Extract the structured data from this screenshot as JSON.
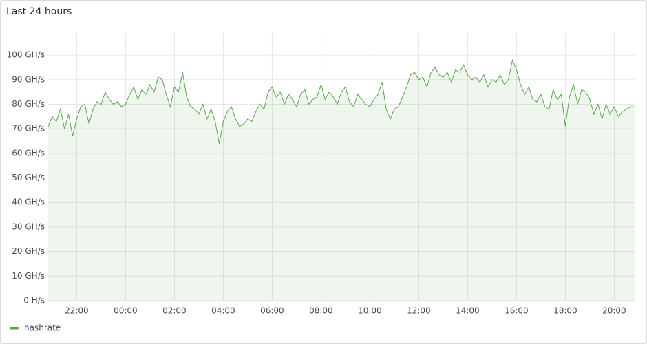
{
  "chart_data": {
    "type": "line",
    "title": "Last 24 hours",
    "x": [
      "20:50",
      "21:00",
      "21:10",
      "21:20",
      "21:30",
      "21:40",
      "21:50",
      "22:00",
      "22:10",
      "22:20",
      "22:30",
      "22:40",
      "22:50",
      "23:00",
      "23:10",
      "23:20",
      "23:30",
      "23:40",
      "23:50",
      "00:00",
      "00:10",
      "00:20",
      "00:30",
      "00:40",
      "00:50",
      "01:00",
      "01:10",
      "01:20",
      "01:30",
      "01:40",
      "01:50",
      "02:00",
      "02:10",
      "02:20",
      "02:30",
      "02:40",
      "02:50",
      "03:00",
      "03:10",
      "03:20",
      "03:30",
      "03:40",
      "03:50",
      "04:00",
      "04:10",
      "04:20",
      "04:30",
      "04:40",
      "04:50",
      "05:00",
      "05:10",
      "05:20",
      "05:30",
      "05:40",
      "05:50",
      "06:00",
      "06:10",
      "06:20",
      "06:30",
      "06:40",
      "06:50",
      "07:00",
      "07:10",
      "07:20",
      "07:30",
      "07:40",
      "07:50",
      "08:00",
      "08:10",
      "08:20",
      "08:30",
      "08:40",
      "08:50",
      "09:00",
      "09:10",
      "09:20",
      "09:30",
      "09:40",
      "09:50",
      "10:00",
      "10:10",
      "10:20",
      "10:30",
      "10:40",
      "10:50",
      "11:00",
      "11:10",
      "11:20",
      "11:30",
      "11:40",
      "11:50",
      "12:00",
      "12:10",
      "12:20",
      "12:30",
      "12:40",
      "12:50",
      "13:00",
      "13:10",
      "13:20",
      "13:30",
      "13:40",
      "13:50",
      "14:00",
      "14:10",
      "14:20",
      "14:30",
      "14:40",
      "14:50",
      "15:00",
      "15:10",
      "15:20",
      "15:30",
      "15:40",
      "15:50",
      "16:00",
      "16:10",
      "16:20",
      "16:30",
      "16:40",
      "16:50",
      "17:00",
      "17:10",
      "17:20",
      "17:30",
      "17:40",
      "17:50",
      "18:00",
      "18:10",
      "18:20",
      "18:30",
      "18:40",
      "18:50",
      "19:00",
      "19:10",
      "19:20",
      "19:30",
      "19:40",
      "19:50",
      "20:00",
      "20:10",
      "20:20",
      "20:30",
      "20:40",
      "20:50"
    ],
    "series": [
      {
        "name": "hashrate",
        "color": "#56a64b",
        "values": [
          71,
          75,
          73,
          78,
          70,
          76,
          67,
          74,
          79,
          80,
          72,
          78,
          81,
          80,
          85,
          82,
          80,
          81,
          79,
          80,
          84,
          87,
          82,
          86,
          84,
          88,
          85,
          91,
          90,
          84,
          79,
          87,
          85,
          93,
          83,
          79,
          78,
          76,
          80,
          74,
          78,
          73,
          64,
          73,
          77,
          79,
          74,
          71,
          72,
          74,
          73,
          77,
          80,
          78,
          85,
          87,
          83,
          85,
          80,
          84,
          82,
          79,
          84,
          86,
          80,
          82,
          83,
          88,
          82,
          85,
          83,
          80,
          85,
          87,
          81,
          79,
          84,
          82,
          80,
          79,
          82,
          84,
          89,
          78,
          74,
          78,
          79,
          83,
          87,
          92,
          93,
          90,
          91,
          87,
          93,
          95,
          92,
          91,
          93,
          89,
          94,
          93,
          96,
          92,
          90,
          91,
          89,
          92,
          87,
          90,
          89,
          92,
          88,
          90,
          98,
          94,
          88,
          84,
          87,
          82,
          81,
          84,
          79,
          78,
          86,
          82,
          84,
          71,
          83,
          88,
          80,
          86,
          85,
          82,
          76,
          80,
          74,
          80,
          76,
          79,
          75,
          77,
          78,
          79,
          79
        ]
      }
    ],
    "xticks": [
      "22:00",
      "00:00",
      "02:00",
      "04:00",
      "06:00",
      "08:00",
      "10:00",
      "12:00",
      "14:00",
      "16:00",
      "18:00",
      "20:00"
    ],
    "ylim": [
      0,
      109
    ],
    "yticks": [
      {
        "value": 0,
        "label": "0 H/s"
      },
      {
        "value": 10,
        "label": "10 GH/s"
      },
      {
        "value": 20,
        "label": "20 GH/s"
      },
      {
        "value": 30,
        "label": "30 GH/s"
      },
      {
        "value": 40,
        "label": "40 GH/s"
      },
      {
        "value": 50,
        "label": "50 GH/s"
      },
      {
        "value": 60,
        "label": "60 GH/s"
      },
      {
        "value": 70,
        "label": "70 GH/s"
      },
      {
        "value": 80,
        "label": "80 GH/s"
      },
      {
        "value": 90,
        "label": "90 GH/s"
      },
      {
        "value": 100,
        "label": "100 GH/s"
      }
    ],
    "grid": true,
    "legend": "bottom-left"
  }
}
